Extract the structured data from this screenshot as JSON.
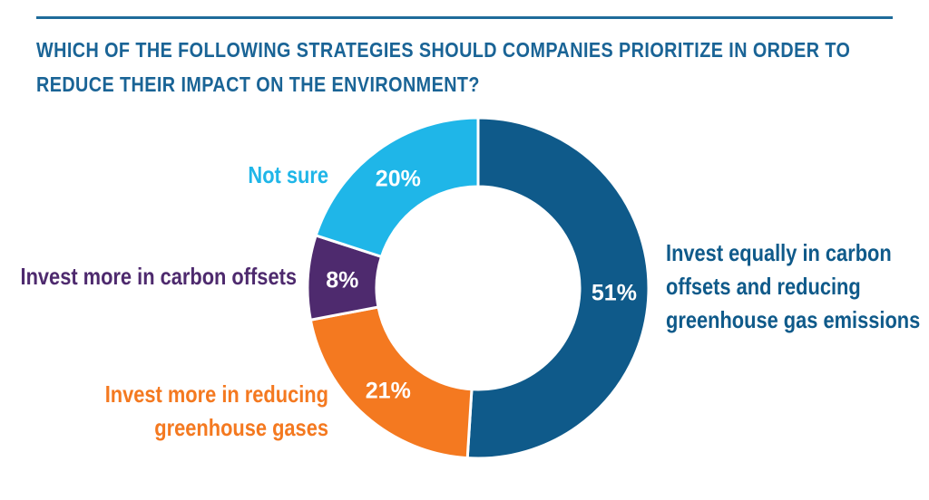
{
  "title_lines": [
    "WHICH OF THE FOLLOWING STRATEGIES SHOULD COMPANIES PRIORITIZE IN ORDER TO",
    "REDUCE THEIR IMPACT ON THE ENVIRONMENT?"
  ],
  "colors": {
    "rule": "#1e6b9a",
    "title": "#1a6496"
  },
  "chart_data": {
    "type": "pie",
    "variant": "donut",
    "title": "WHICH OF THE FOLLOWING STRATEGIES SHOULD COMPANIES PRIORITIZE IN ORDER TO REDUCE THEIR IMPACT ON THE ENVIRONMENT?",
    "slices": [
      {
        "label": "Invest equally in carbon offsets and reducing greenhouse gas emissions",
        "label_lines": [
          "Invest equally in carbon",
          "offsets and reducing",
          "greenhouse gas emissions"
        ],
        "value": 51,
        "display": "51%",
        "color": "#0f5a8a"
      },
      {
        "label": "Invest more in reducing greenhouse gases",
        "label_lines": [
          "Invest more in reducing",
          "greenhouse gases"
        ],
        "value": 21,
        "display": "21%",
        "color": "#f47920"
      },
      {
        "label": "Invest more in carbon offsets",
        "label_lines": [
          "Invest more in carbon offsets"
        ],
        "value": 8,
        "display": "8%",
        "color": "#4e2a6e"
      },
      {
        "label": "Not sure",
        "label_lines": [
          "Not sure"
        ],
        "value": 20,
        "display": "20%",
        "color": "#1fb6e8"
      }
    ]
  }
}
